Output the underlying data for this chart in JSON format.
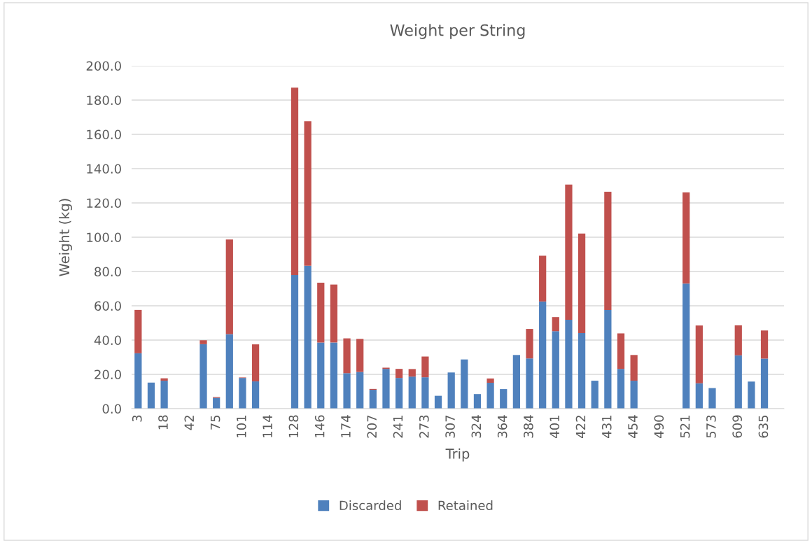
{
  "chart_data": {
    "type": "bar",
    "title": "Weight per String",
    "xlabel": "Trip",
    "ylabel": "Weight (kg)",
    "categories": [
      "3",
      null,
      "18",
      null,
      "42",
      null,
      "75",
      null,
      "101",
      null,
      "114",
      null,
      "128",
      null,
      "146",
      null,
      "174",
      null,
      "207",
      null,
      "241",
      null,
      "273",
      null,
      "307",
      null,
      "324",
      null,
      "364",
      null,
      "384",
      null,
      "401",
      null,
      "422",
      null,
      "431",
      null,
      "454",
      null,
      "490",
      null,
      "521",
      null,
      "573",
      null,
      "609",
      null,
      "635",
      null
    ],
    "stacked": true,
    "series": [
      {
        "name": "Discarded",
        "color": "#4f81bd",
        "values": [
          32.3,
          15.2,
          16.3,
          null,
          null,
          37.6,
          6.3,
          43.5,
          17.9,
          15.9,
          null,
          null,
          78.0,
          83.4,
          38.6,
          38.6,
          20.7,
          21.4,
          11.0,
          23.2,
          17.9,
          18.7,
          18.3,
          7.5,
          21.1,
          28.7,
          8.5,
          15.1,
          11.4,
          31.3,
          29.3,
          62.5,
          45.2,
          51.8,
          44.1,
          16.3,
          57.6,
          23.2,
          16.3,
          null,
          null,
          null,
          73.0,
          14.8,
          12.0,
          null,
          31.1,
          15.8,
          29.2,
          null
        ]
      },
      {
        "name": "Retained",
        "color": "#c0504d",
        "values": [
          25.3,
          null,
          1.4,
          null,
          null,
          2.3,
          0.5,
          55.2,
          0.3,
          21.6,
          null,
          null,
          109.2,
          84.3,
          34.9,
          33.8,
          20.3,
          19.3,
          0.5,
          0.7,
          5.3,
          4.4,
          12.1,
          null,
          null,
          null,
          null,
          2.5,
          null,
          null,
          17.2,
          26.7,
          8.2,
          78.9,
          58.0,
          null,
          68.9,
          20.7,
          15.0,
          null,
          null,
          null,
          53.1,
          33.7,
          null,
          null,
          17.5,
          null,
          16.4,
          null
        ]
      }
    ],
    "ylim": [
      0,
      200
    ],
    "yticks": [
      {
        "value": 0,
        "label": "0.0"
      },
      {
        "value": 20,
        "label": "20.0"
      },
      {
        "value": 40,
        "label": "40.0"
      },
      {
        "value": 60,
        "label": "60.0"
      },
      {
        "value": 80,
        "label": "80.0"
      },
      {
        "value": 100,
        "label": "100.0"
      },
      {
        "value": 120,
        "label": "120.0"
      },
      {
        "value": 140,
        "label": "140.0"
      },
      {
        "value": 160,
        "label": "160.0"
      },
      {
        "value": 180,
        "label": "180.0"
      },
      {
        "value": 200,
        "label": "200.0"
      }
    ],
    "grid": "y",
    "legend": "bottom"
  }
}
